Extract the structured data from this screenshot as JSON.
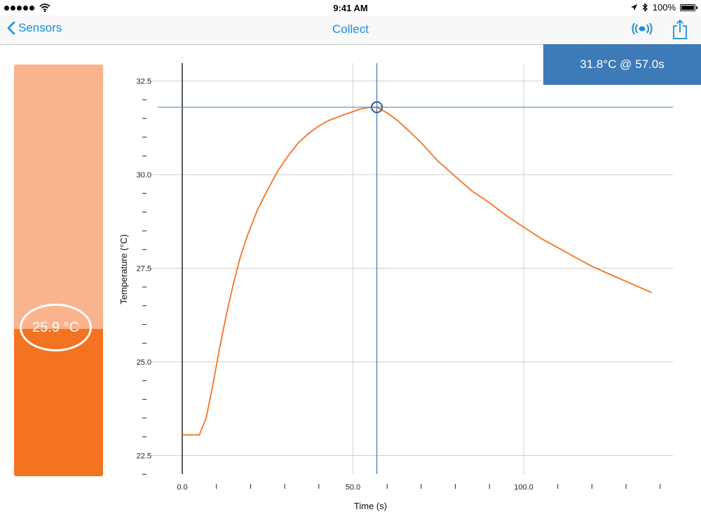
{
  "status_bar": {
    "time": "9:41 AM",
    "battery": "100%",
    "icons": [
      "signal-dots",
      "wifi-icon",
      "location-icon",
      "bluetooth-icon",
      "battery-icon"
    ]
  },
  "nav": {
    "back_label": "Sensors",
    "title": "Collect",
    "icons": [
      "chevron-left-icon",
      "broadcast-icon",
      "share-icon"
    ],
    "accent": "#1a8fd8"
  },
  "thermometer": {
    "reading": "25.9 °C",
    "fill_fraction": 0.357,
    "colors": {
      "light": "#f9b48d",
      "dark": "#f47321"
    }
  },
  "readout": {
    "text": "31.8°C @ 57.0s",
    "color": "#3d7ab8"
  },
  "chart_data": {
    "type": "line",
    "xlabel": "Time (s)",
    "ylabel": "Temperature (°C)",
    "xlim": [
      -5,
      145
    ],
    "ylim": [
      22,
      33
    ],
    "x_tick_labels": [
      {
        "v": 0,
        "t": "0.0"
      },
      {
        "v": 50,
        "t": "50.0"
      },
      {
        "v": 100,
        "t": "100.0"
      }
    ],
    "y_tick_labels": [
      {
        "v": 32.5,
        "t": "32.5"
      },
      {
        "v": 30,
        "t": "30.0"
      },
      {
        "v": 27.5,
        "t": "27.5"
      },
      {
        "v": 25,
        "t": "25.0"
      },
      {
        "v": 22.5,
        "t": "22.5"
      }
    ],
    "x_gridlines": [
      50,
      100
    ],
    "y_gridlines": [
      32.5,
      30,
      27.5,
      25,
      22.5
    ],
    "x_minor_ticks": [
      10,
      20,
      30,
      40,
      60,
      70,
      80,
      90,
      110,
      120,
      130,
      140
    ],
    "y_minor_ticks": [
      32.0,
      31.5,
      31.0,
      30.5,
      29.5,
      29.0,
      28.5,
      28.0,
      27.0,
      26.5,
      26.0,
      25.5,
      24.5,
      24.0,
      23.5,
      23.0,
      22.0
    ],
    "cursor": {
      "x": 57.0,
      "y": 31.8
    },
    "line_color": "#f47321",
    "cursor_color": "#3d7ab8",
    "series": [
      {
        "x": [
          0,
          3,
          5,
          7,
          9,
          11,
          13,
          15,
          17,
          19,
          22,
          25,
          28,
          31,
          34,
          37,
          40,
          43,
          46,
          49,
          52,
          55,
          57,
          60,
          63,
          66,
          70,
          75,
          80,
          85,
          90,
          95,
          100,
          105,
          110,
          115,
          120,
          125,
          130,
          135,
          137.5
        ],
        "y": [
          23.05,
          23.05,
          23.05,
          23.5,
          24.4,
          25.4,
          26.3,
          27.1,
          27.8,
          28.35,
          29.05,
          29.6,
          30.1,
          30.5,
          30.85,
          31.1,
          31.3,
          31.45,
          31.55,
          31.65,
          31.75,
          31.8,
          31.8,
          31.65,
          31.45,
          31.2,
          30.85,
          30.35,
          29.95,
          29.55,
          29.25,
          28.9,
          28.6,
          28.3,
          28.05,
          27.8,
          27.55,
          27.35,
          27.15,
          26.95,
          26.85
        ]
      }
    ]
  }
}
